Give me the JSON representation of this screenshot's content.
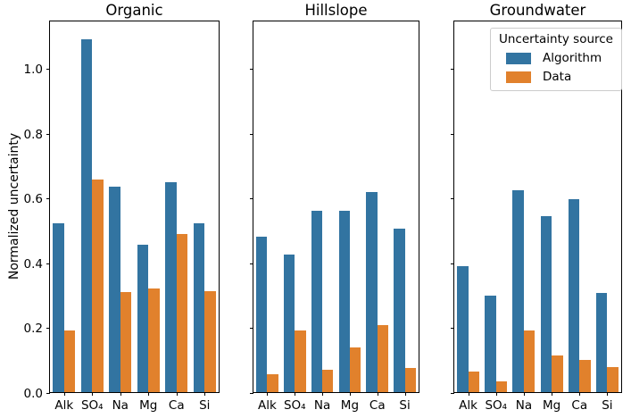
{
  "chart_data": {
    "type": "bar",
    "categories": [
      "Alk",
      "SO₄",
      "Na",
      "Mg",
      "Ca",
      "Si"
    ],
    "ylabel": "Normalized uncertainty",
    "ylim": [
      0,
      1.15
    ],
    "yticks": [
      0.0,
      0.2,
      0.4,
      0.6,
      0.8,
      1.0
    ],
    "grid": false,
    "legend_position": "upper-right-of-third-panel",
    "colors": {
      "algorithm": "#3274a1",
      "data": "#e1812c"
    },
    "legend": {
      "title": "Uncertainty source",
      "entries": [
        {
          "label": "Algorithm",
          "color": "#3274a1"
        },
        {
          "label": "Data",
          "color": "#e1812c"
        }
      ]
    },
    "panels": [
      {
        "title": "Organic",
        "series": [
          {
            "name": "Algorithm",
            "values": [
              0.52,
              1.09,
              0.633,
              0.454,
              0.647,
              0.52
            ]
          },
          {
            "name": "Data",
            "values": [
              0.189,
              0.656,
              0.309,
              0.321,
              0.488,
              0.313
            ]
          }
        ]
      },
      {
        "title": "Hillslope",
        "series": [
          {
            "name": "Algorithm",
            "values": [
              0.481,
              0.426,
              0.561,
              0.559,
              0.617,
              0.504
            ]
          },
          {
            "name": "Data",
            "values": [
              0.055,
              0.189,
              0.069,
              0.138,
              0.207,
              0.075
            ]
          }
        ]
      },
      {
        "title": "Groundwater",
        "series": [
          {
            "name": "Algorithm",
            "values": [
              0.39,
              0.299,
              0.624,
              0.543,
              0.596,
              0.307
            ]
          },
          {
            "name": "Data",
            "values": [
              0.064,
              0.032,
              0.189,
              0.113,
              0.099,
              0.076
            ]
          }
        ]
      }
    ]
  }
}
